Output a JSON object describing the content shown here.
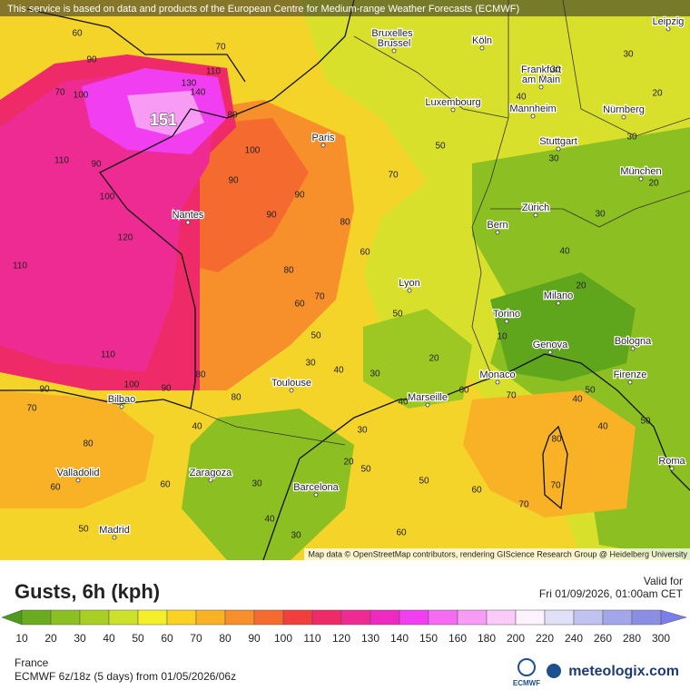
{
  "header": {
    "notice": "This service is based on data and products of the European Centre for Medium-range Weather Forecasts (ECMWF)"
  },
  "map": {
    "attribution": "Map data © OpenStreetMap contributors, rendering GIScience Research Group @ Heidelberg University",
    "peak_label": "151",
    "cities": [
      "Bruxelles",
      "Brussel",
      "Köln",
      "Leipzig",
      "Frankfurt",
      "am Main",
      "Luxembourg",
      "Mannheim",
      "Nürnberg",
      "Stuttgart",
      "Paris",
      "München",
      "Nantes",
      "Zürich",
      "Bern",
      "Lyon",
      "Milano",
      "Torino",
      "Genova",
      "Bologna",
      "Monaco",
      "Firenze",
      "Toulouse",
      "Marseille",
      "Bilbao",
      "Roma",
      "Valladolid",
      "Zaragoza",
      "Barcelona",
      "Madrid"
    ],
    "contour_labels": [
      60,
      90,
      70,
      110,
      130,
      140,
      100,
      70,
      110,
      90,
      100,
      120,
      110,
      110,
      100,
      90,
      90,
      70,
      80,
      80,
      80,
      90,
      90,
      90,
      100,
      80,
      80,
      80,
      70,
      60,
      50,
      50,
      60,
      70,
      50,
      30,
      40,
      30,
      40,
      20,
      60,
      30,
      50,
      50,
      60,
      70,
      40,
      50,
      50,
      40,
      70,
      70,
      60,
      40,
      30,
      20,
      60,
      40,
      30,
      60,
      50,
      80,
      30,
      30,
      20,
      30,
      40,
      30,
      40,
      20,
      10,
      30,
      20
    ]
  },
  "panel": {
    "title": "Gusts, 6h (kph)",
    "valid_label": "Valid for",
    "valid_time": "Fri 01/09/2026, 01:00am CET",
    "region": "France",
    "model_run": "ECMWF 6z/18z (5 days) from 01/05/2026/06z",
    "ecmwf_logo": "ECMWF",
    "brand": "meteologix.com"
  },
  "legend": {
    "ticks": [
      10,
      20,
      30,
      40,
      50,
      60,
      70,
      80,
      90,
      100,
      110,
      120,
      130,
      140,
      150,
      160,
      180,
      200,
      220,
      240,
      260,
      280,
      300
    ],
    "colors": [
      "#4f9a1c",
      "#6aab1f",
      "#8bbf22",
      "#a9cf24",
      "#cde12a",
      "#f3f029",
      "#fbd224",
      "#f9b126",
      "#f78f2b",
      "#f46a2f",
      "#f03f3c",
      "#ef2a68",
      "#ee2a93",
      "#ee2ac0",
      "#f03ef0",
      "#f56cf2",
      "#f79bf5",
      "#facbf8",
      "#fdf2fd",
      "#e0e0f8",
      "#c0c2f0",
      "#a4a6ea",
      "#8c8ee4",
      "#7b7de8"
    ]
  }
}
